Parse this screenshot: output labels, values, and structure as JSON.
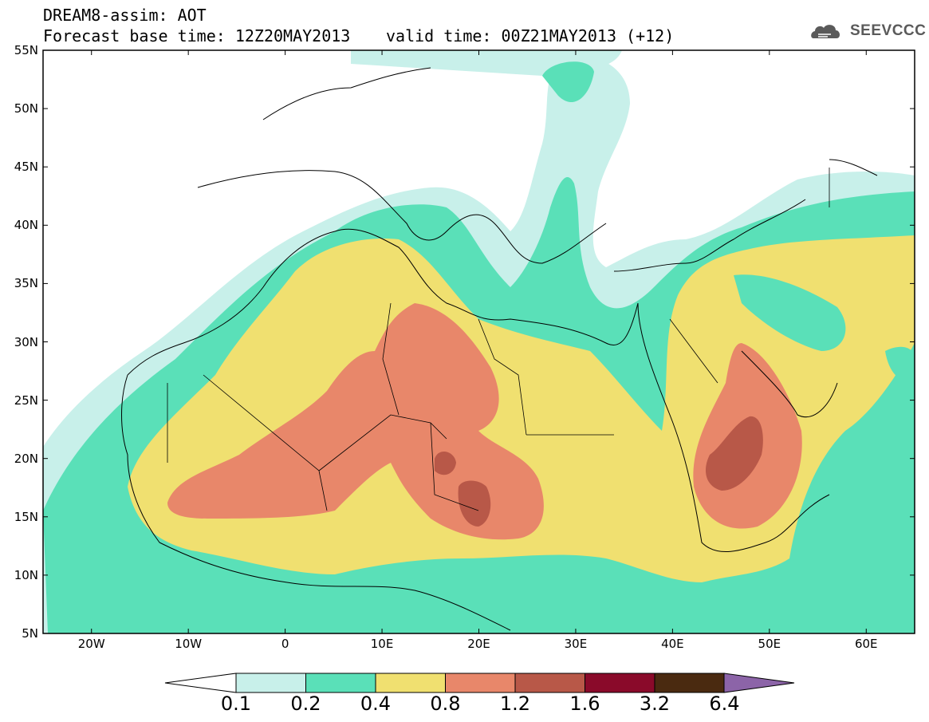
{
  "header": {
    "title": "DREAM8-assim: AOT",
    "base_time": "Forecast base time: 12Z20MAY2013",
    "valid_time": "valid time: 00Z21MAY2013 (+12)",
    "logo_text": "SEEVCCC"
  },
  "axes": {
    "lat_labels": [
      "55N",
      "50N",
      "45N",
      "40N",
      "35N",
      "30N",
      "25N",
      "20N",
      "15N",
      "10N",
      "5N"
    ],
    "lon_labels": [
      "20W",
      "10W",
      "0",
      "10E",
      "20E",
      "30E",
      "40E",
      "50E",
      "60E"
    ],
    "lat_range": [
      5,
      55
    ],
    "lon_range": [
      -25,
      65
    ]
  },
  "colorbar": {
    "levels": [
      "0.1",
      "0.2",
      "0.4",
      "0.8",
      "1.2",
      "1.6",
      "3.2",
      "6.4"
    ],
    "colors": [
      "#c8f0ea",
      "#5ae0b8",
      "#f0e070",
      "#e8876a",
      "#b85848",
      "#8a0a2a",
      "#4a2a10",
      "#8c64a8"
    ]
  },
  "field_colors": {
    "light": "#c8f0ea",
    "green": "#5ae0b8",
    "yellow": "#f0e070",
    "orange": "#e8876a",
    "red": "#b85848",
    "border": "#000000"
  }
}
